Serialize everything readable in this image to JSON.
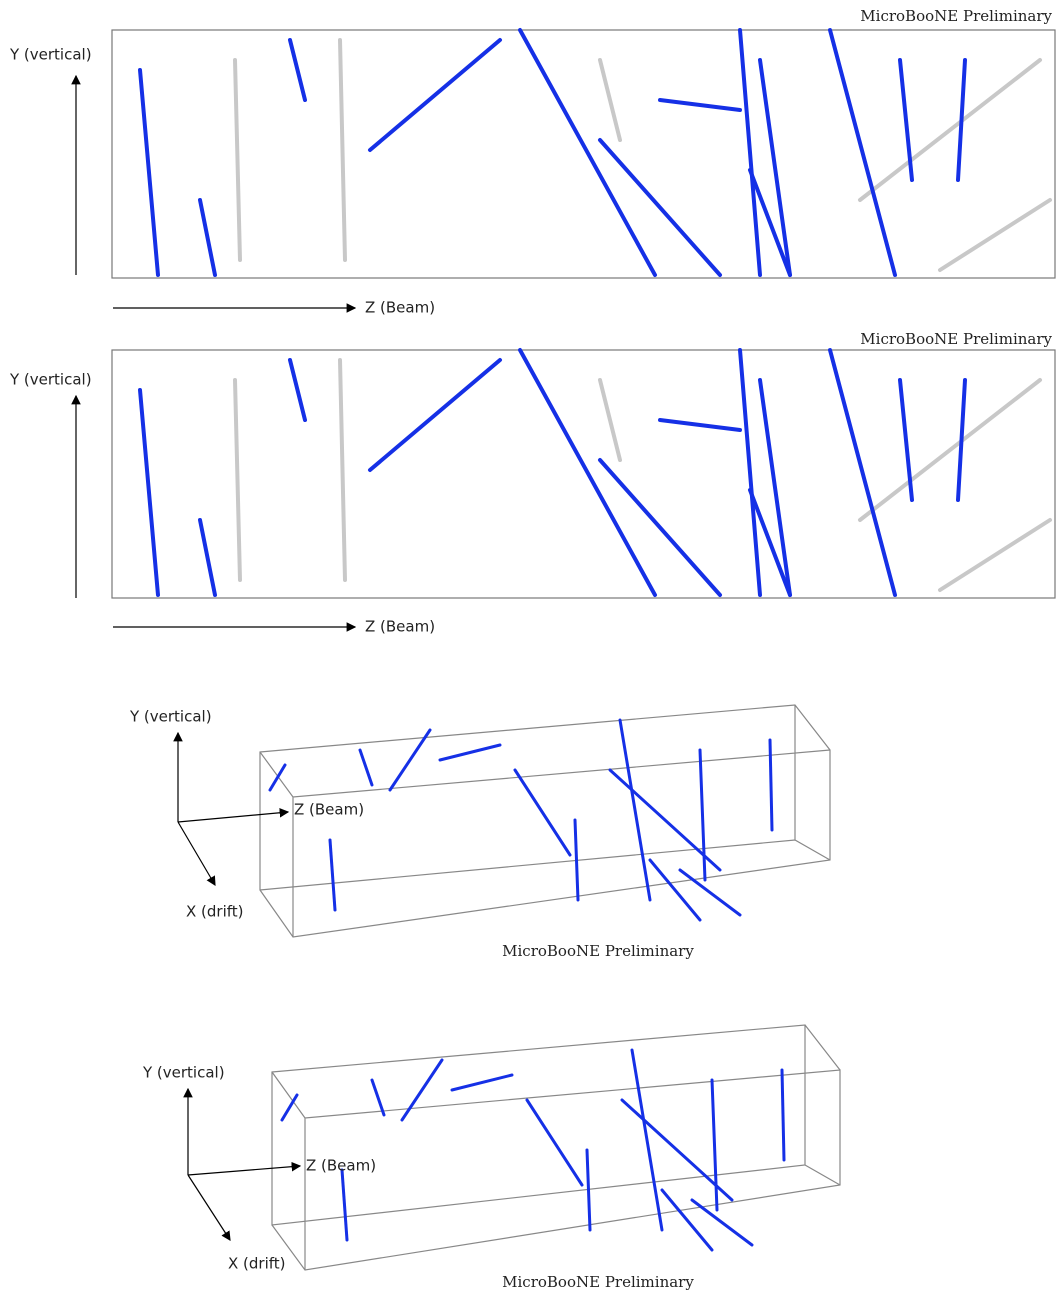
{
  "panels": [
    {
      "watermark": "MicroBooNE Preliminary",
      "y_axis": "Y (vertical)",
      "z_axis": "Z (Beam)"
    },
    {
      "watermark": "MicroBooNE Preliminary",
      "y_axis": "Y (vertical)",
      "z_axis": "Z (Beam)"
    },
    {
      "y_axis": "Y (vertical)",
      "z_axis": "Z (Beam)",
      "x_axis": "X (drift)",
      "watermark": "MicroBooNE Preliminary"
    },
    {
      "y_axis": "Y (vertical)",
      "z_axis": "Z (Beam)",
      "x_axis": "X (drift)",
      "watermark": "MicroBooNE Preliminary"
    }
  ]
}
